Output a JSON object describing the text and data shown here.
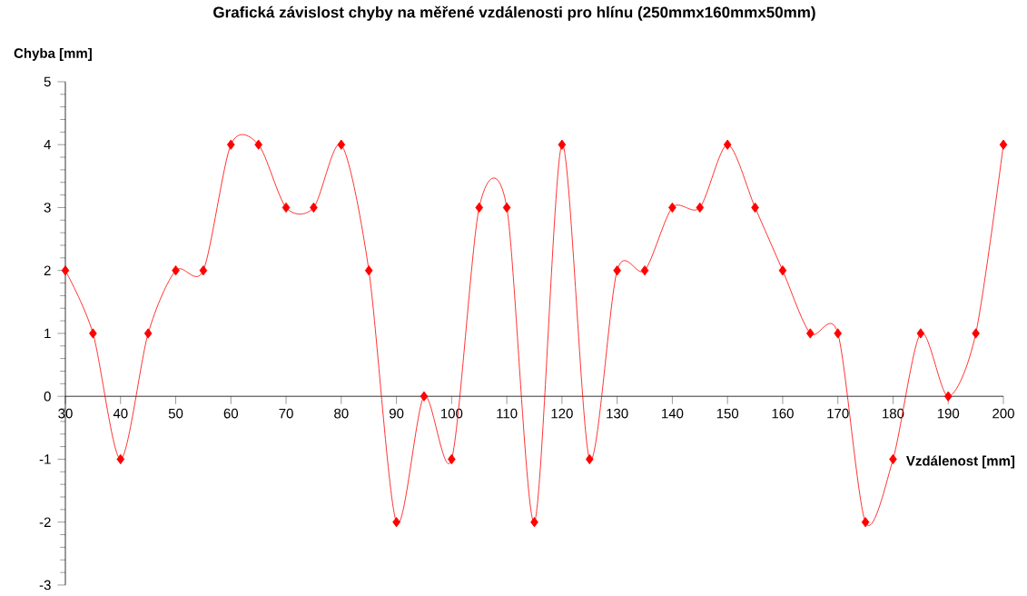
{
  "chart_data": {
    "type": "line",
    "title": "Grafická závislost chyby na měřené vzdálenosti pro hlínu (250mmx160mmx50mm)",
    "xlabel": "Vzdálenost [mm]",
    "ylabel": "Chyba [mm]",
    "x": [
      30,
      35,
      40,
      45,
      50,
      55,
      60,
      65,
      70,
      75,
      80,
      85,
      90,
      95,
      100,
      105,
      110,
      115,
      120,
      125,
      130,
      135,
      140,
      145,
      150,
      155,
      160,
      165,
      170,
      175,
      180,
      185,
      190,
      195,
      200
    ],
    "series": [
      {
        "color": "#ff0000",
        "values": [
          2,
          1,
          -1,
          1,
          2,
          2,
          4,
          4,
          3,
          3,
          4,
          2,
          -2,
          0,
          -1,
          3,
          3,
          -2,
          4,
          -1,
          2,
          2,
          3,
          3,
          4,
          3,
          2,
          1,
          1,
          -2,
          -1,
          1,
          0,
          1,
          4
        ]
      }
    ],
    "xlim": [
      30,
      200
    ],
    "ylim": [
      -3,
      5
    ],
    "xticks": [
      30,
      40,
      50,
      60,
      70,
      80,
      90,
      100,
      110,
      120,
      130,
      140,
      150,
      160,
      170,
      180,
      190,
      200
    ],
    "yticks": [
      -3,
      -2,
      -1,
      0,
      1,
      2,
      3,
      4,
      5
    ],
    "marker": "diamond",
    "line_style": "solid",
    "grid": false
  }
}
